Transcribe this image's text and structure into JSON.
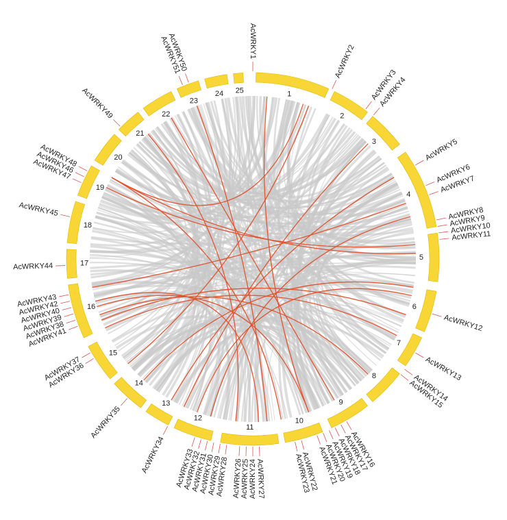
{
  "chromosomes": [
    "1",
    "2",
    "3",
    "4",
    "5",
    "6",
    "7",
    "8",
    "9",
    "10",
    "11",
    "12",
    "13",
    "14",
    "15",
    "16",
    "17",
    "18",
    "19",
    "20",
    "21",
    "22",
    "23",
    "24",
    "25"
  ],
  "genes": [
    "AcWRKY1",
    "AcWRKY2",
    "AcWRKY3",
    "AcWRKY4",
    "AcWRKY5",
    "AcWRKY6",
    "AcWRKY7",
    "AcWRKY8",
    "AcWRKY9",
    "AcWRKY10",
    "AcWRKY11",
    "AcWRKY12",
    "AcWRKY13",
    "AcWRKY14",
    "AcWRKY15",
    "AcWRKY16",
    "AcWRKY17",
    "AcWRKY18",
    "AcWRKY19",
    "AcWRKY20",
    "AcWRKY21",
    "AcWRKY22",
    "AcWRKY23",
    "AcWRKY24",
    "AcWRKY25",
    "AcWRKY26",
    "AcWRKY27",
    "AcWRKY28",
    "AcWRKY29",
    "AcWRKY30",
    "AcWRKY31",
    "AcWRKY32",
    "AcWRKY33",
    "AcWRKY34",
    "AcWRKY35",
    "AcWRKY36",
    "AcWRKY37",
    "AcWRKY38",
    "AcWRKY39",
    "AcWRKY40",
    "AcWRKY41",
    "AcWRKY42",
    "AcWRKY43",
    "AcWRKY44",
    "AcWRKY45",
    "AcWRKY46",
    "AcWRKY47",
    "AcWRKY48",
    "AcWRKY49",
    "AcWRKY50",
    "AcWRKY51"
  ]
}
